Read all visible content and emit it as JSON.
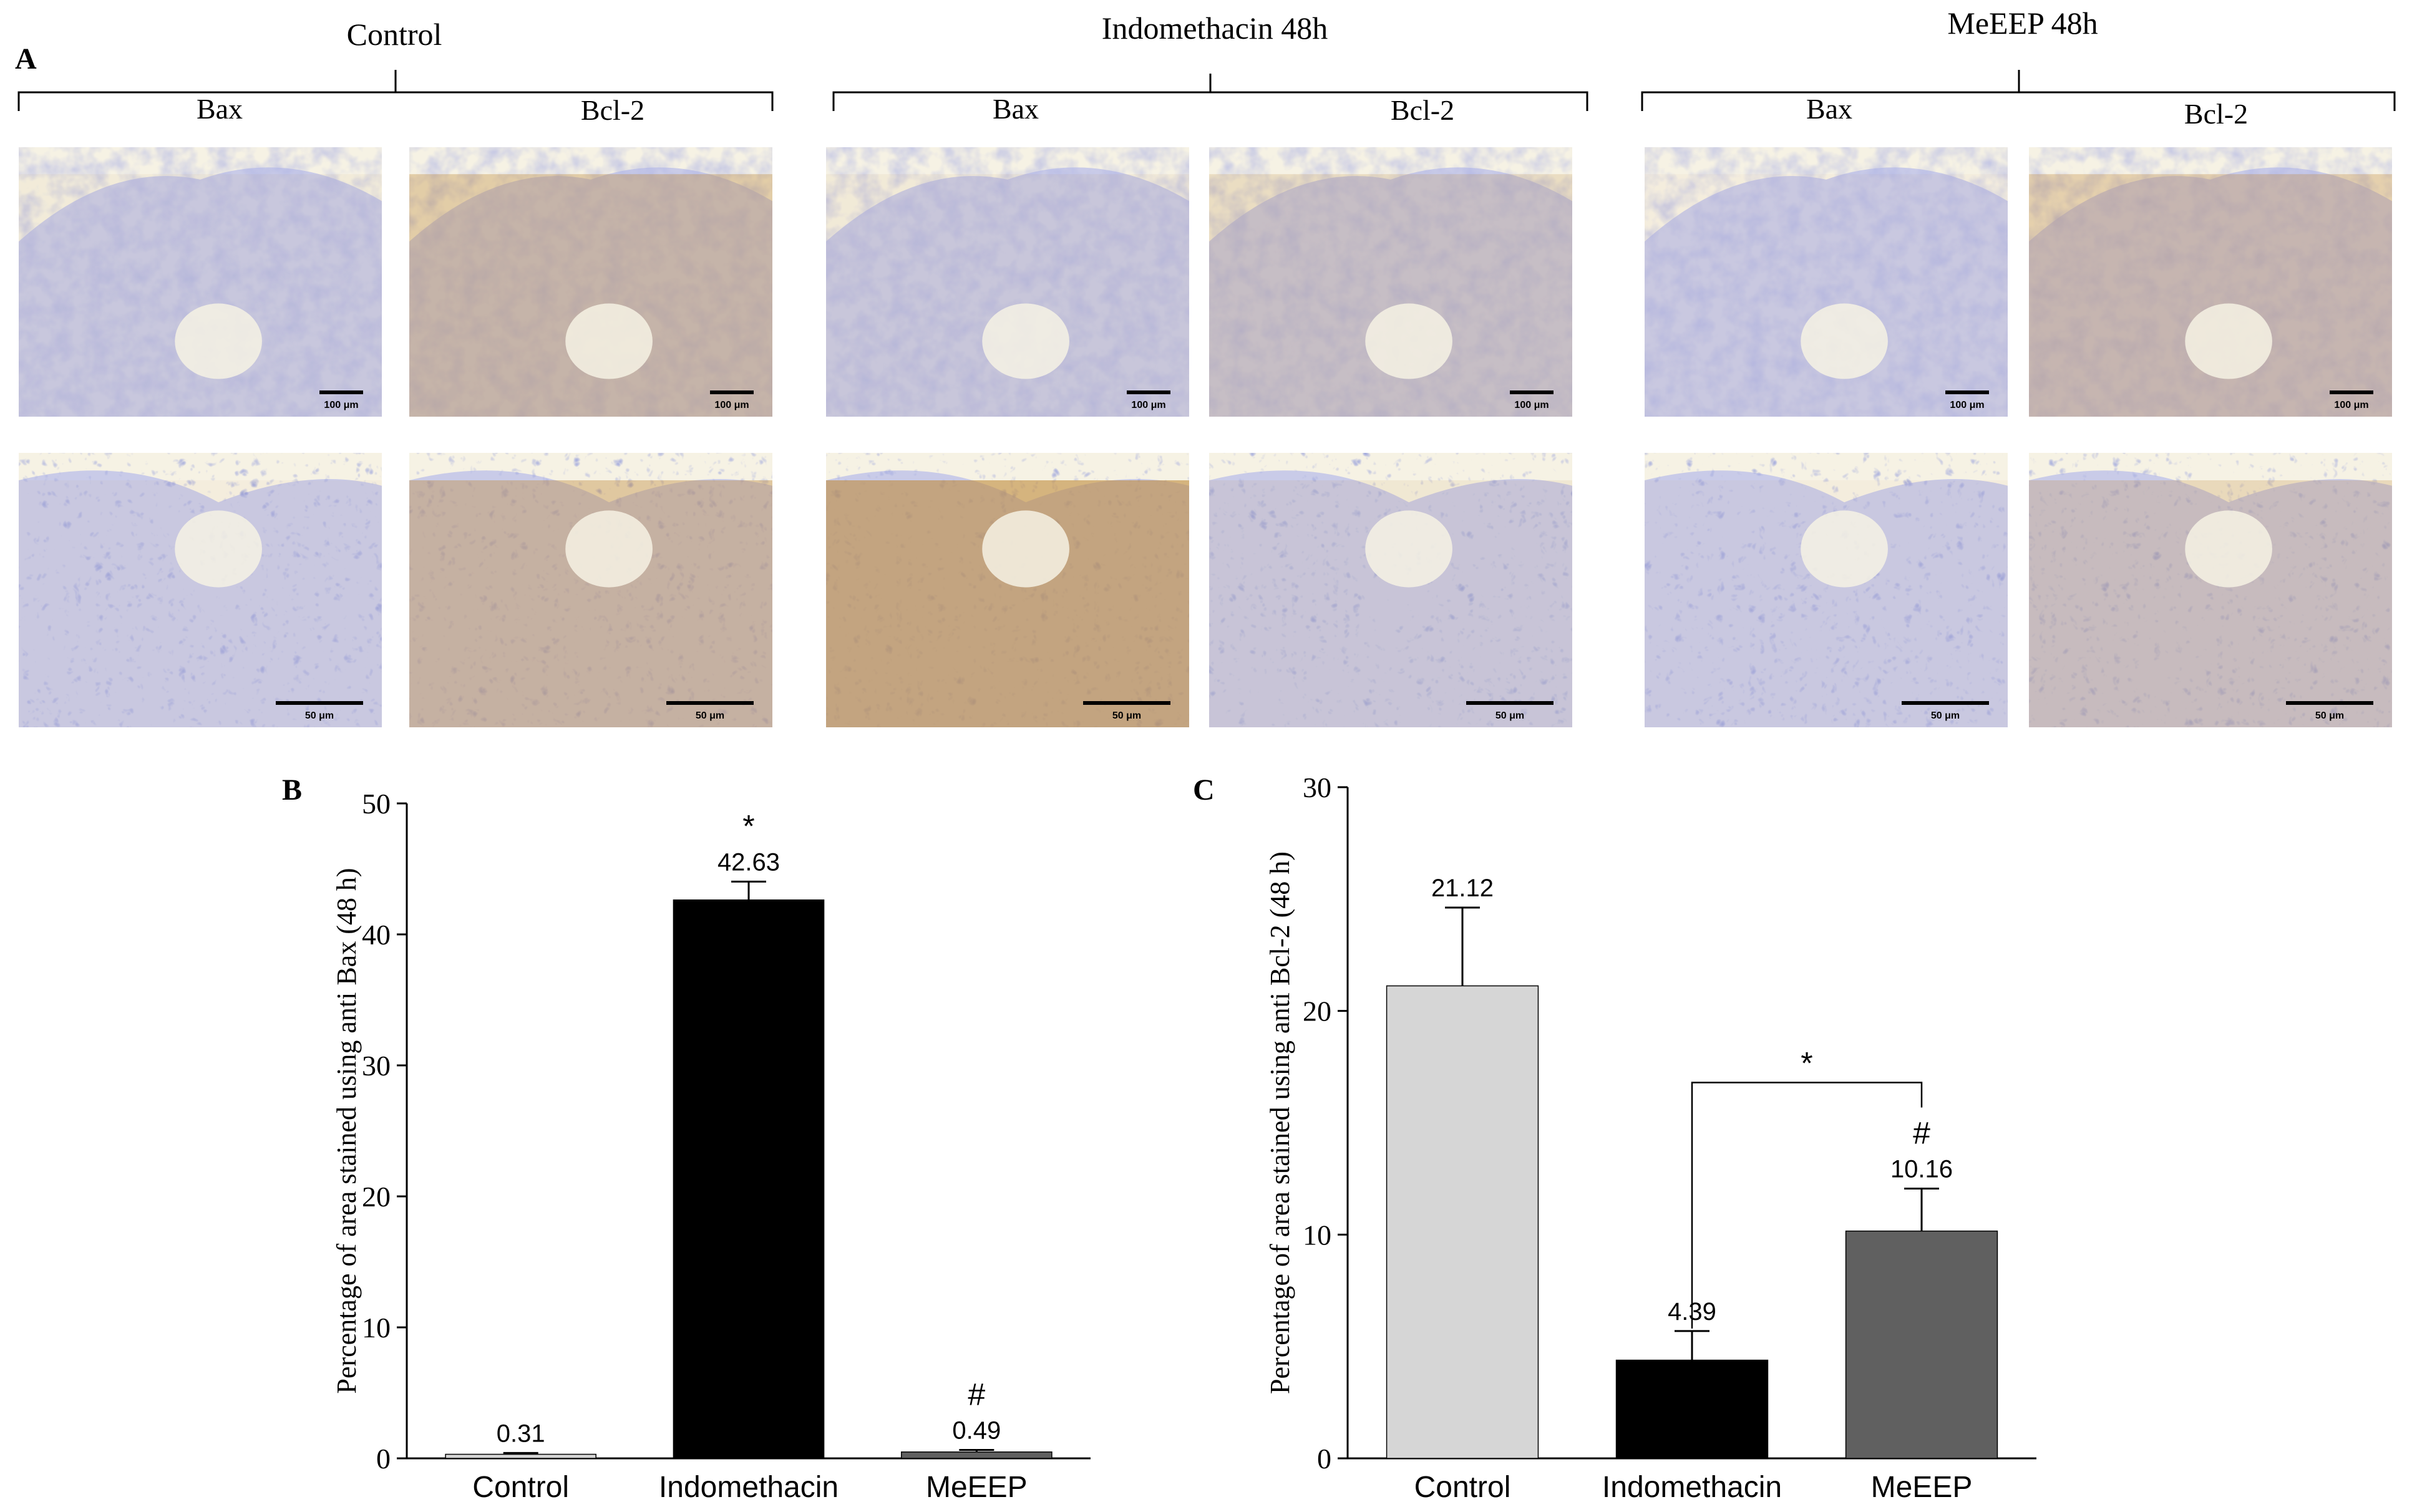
{
  "panel_a": {
    "letter": "A",
    "groups": [
      {
        "title": "Control",
        "stain_labels": [
          "Bax",
          "Bcl-2"
        ]
      },
      {
        "title": "Indomethacin 48h",
        "stain_labels": [
          "Bax",
          "Bcl-2"
        ]
      },
      {
        "title": "MeEEP 48h",
        "stain_labels": [
          "Bax",
          "Bcl-2"
        ]
      }
    ],
    "scalebars": {
      "low": "100 μm",
      "high": "50 μm"
    },
    "colors": {
      "hematoxylin": "#7b83c6",
      "dab_brown": "#c08a3a",
      "background": "#f6f2e4"
    }
  },
  "chart_data": [
    {
      "panel": "B",
      "type": "bar",
      "ylabel": "Percentage of area stained using anti Bax (48 h)",
      "categories": [
        "Control",
        "Indomethacin",
        "MeEEP"
      ],
      "values": [
        0.31,
        42.63,
        0.49
      ],
      "value_labels": [
        "0.31",
        "42.63",
        "0.49"
      ],
      "errors": [
        0.1,
        1.4,
        0.15
      ],
      "colors": [
        "#d6d6d6",
        "#000000",
        "#606060"
      ],
      "significance": [
        "",
        "*",
        "#"
      ],
      "ylim": [
        0,
        50
      ],
      "yticks": [
        0,
        10,
        20,
        30,
        40,
        50
      ],
      "ytick_labels": [
        "0",
        "10",
        "20",
        "30",
        "40",
        "50"
      ]
    },
    {
      "panel": "C",
      "type": "bar",
      "ylabel": "Percentage of area stained using anti Bcl-2 (48 h)",
      "categories": [
        "Control",
        "Indomethacin",
        "MeEEP"
      ],
      "values": [
        21.12,
        4.39,
        10.16
      ],
      "value_labels": [
        "21.12",
        "4.39",
        "10.16"
      ],
      "errors": [
        3.5,
        1.3,
        1.9
      ],
      "colors": [
        "#d6d6d6",
        "#000000",
        "#606060"
      ],
      "significance": [
        "",
        "",
        "#"
      ],
      "bracket": {
        "from": 1,
        "to": 2,
        "label": "*"
      },
      "ylim": [
        0,
        30
      ],
      "yticks": [
        0,
        10,
        20,
        30
      ],
      "ytick_labels": [
        "0",
        "10",
        "20",
        "30"
      ]
    }
  ]
}
